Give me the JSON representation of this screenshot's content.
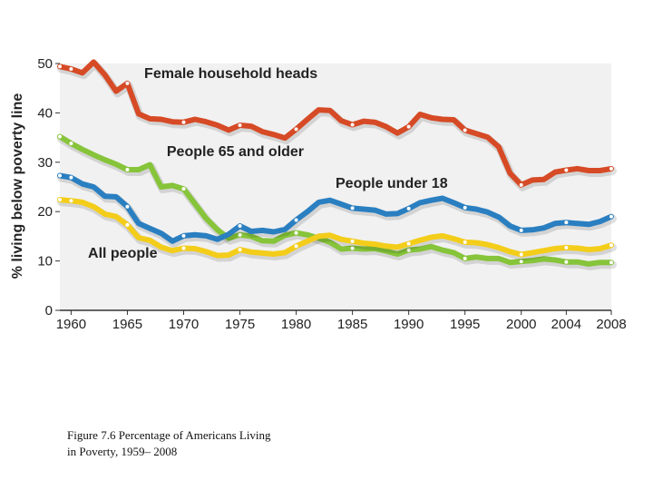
{
  "caption": {
    "line1": "Figure 7.6 Percentage of Americans Living",
    "line2": "in Poverty,  1959– 2008"
  },
  "chart_data": {
    "type": "line",
    "ylabel": "% living below poverty line",
    "xlabel": "",
    "ylim": [
      0,
      50
    ],
    "xlim": [
      1959,
      2008
    ],
    "yticks": [
      0,
      10,
      20,
      30,
      40,
      50
    ],
    "xticks": [
      {
        "value": 1960,
        "label": "1960"
      },
      {
        "value": 1965,
        "label": "1965"
      },
      {
        "value": 1970,
        "label": "1970"
      },
      {
        "value": 1975,
        "label": "1975"
      },
      {
        "value": 1980,
        "label": "1980"
      },
      {
        "value": 1985,
        "label": "1985"
      },
      {
        "value": 1990,
        "label": "1990"
      },
      {
        "value": 1995,
        "label": "1995"
      },
      {
        "value": 2000,
        "label": "2000"
      },
      {
        "value": 2004,
        "label": "2004"
      },
      {
        "value": 2008,
        "label": "2008"
      }
    ],
    "series": [
      {
        "name": "Female household heads",
        "color": "#d64a25",
        "x": [
          1959,
          1960,
          1961,
          1962,
          1963,
          1964,
          1965,
          1966,
          1967,
          1968,
          1969,
          1970,
          1971,
          1972,
          1973,
          1974,
          1975,
          1976,
          1977,
          1978,
          1979,
          1980,
          1981,
          1982,
          1983,
          1984,
          1985,
          1986,
          1987,
          1988,
          1989,
          1990,
          1991,
          1992,
          1993,
          1994,
          1995,
          1996,
          1997,
          1998,
          1999,
          2000,
          2001,
          2002,
          2003,
          2004,
          2005,
          2006,
          2007,
          2008
        ],
        "values": [
          49.4,
          48.9,
          48.1,
          50.3,
          47.7,
          44.4,
          46.0,
          39.8,
          38.8,
          38.7,
          38.2,
          38.1,
          38.7,
          38.2,
          37.5,
          36.5,
          37.5,
          37.3,
          36.2,
          35.6,
          34.9,
          36.7,
          38.7,
          40.6,
          40.5,
          38.4,
          37.6,
          38.3,
          38.1,
          37.2,
          35.9,
          37.2,
          39.7,
          39.0,
          38.7,
          38.6,
          36.5,
          35.8,
          35.1,
          33.1,
          27.8,
          25.4,
          26.4,
          26.5,
          28.0,
          28.4,
          28.7,
          28.3,
          28.3,
          28.7
        ],
        "label_anchor_year": 1966.5
      },
      {
        "name": "People 65 and older",
        "color": "#86c43a",
        "x": [
          1959,
          1960,
          1961,
          1962,
          1963,
          1964,
          1965,
          1966,
          1967,
          1968,
          1969,
          1970,
          1971,
          1972,
          1973,
          1974,
          1975,
          1976,
          1977,
          1978,
          1979,
          1980,
          1981,
          1982,
          1983,
          1984,
          1985,
          1986,
          1987,
          1988,
          1989,
          1990,
          1991,
          1992,
          1993,
          1994,
          1995,
          1996,
          1997,
          1998,
          1999,
          2000,
          2001,
          2002,
          2003,
          2004,
          2005,
          2006,
          2007,
          2008
        ],
        "values": [
          35.2,
          33.8,
          32.6,
          31.5,
          30.5,
          29.6,
          28.5,
          28.5,
          29.5,
          25.0,
          25.3,
          24.6,
          21.6,
          18.6,
          16.3,
          14.6,
          15.3,
          15.0,
          14.1,
          14.0,
          15.2,
          15.7,
          15.3,
          14.6,
          13.8,
          12.4,
          12.6,
          12.4,
          12.5,
          12.0,
          11.4,
          12.2,
          12.4,
          12.9,
          12.2,
          11.7,
          10.5,
          10.8,
          10.5,
          10.5,
          9.7,
          9.9,
          10.1,
          10.4,
          10.2,
          9.8,
          9.8,
          9.4,
          9.7,
          9.7
        ],
        "label_anchor_year": 1968.5
      },
      {
        "name": "People under 18",
        "color": "#2a7fc1",
        "x": [
          1959,
          1960,
          1961,
          1962,
          1963,
          1964,
          1965,
          1966,
          1967,
          1968,
          1969,
          1970,
          1971,
          1972,
          1973,
          1974,
          1975,
          1976,
          1977,
          1978,
          1979,
          1980,
          1981,
          1982,
          1983,
          1984,
          1985,
          1986,
          1987,
          1988,
          1989,
          1990,
          1991,
          1992,
          1993,
          1994,
          1995,
          1996,
          1997,
          1998,
          1999,
          2000,
          2001,
          2002,
          2003,
          2004,
          2005,
          2006,
          2007,
          2008
        ],
        "values": [
          27.3,
          26.9,
          25.6,
          25.0,
          23.1,
          23.0,
          21.0,
          17.6,
          16.6,
          15.6,
          14.0,
          15.1,
          15.3,
          15.1,
          14.4,
          15.4,
          17.1,
          16.0,
          16.2,
          15.9,
          16.4,
          18.3,
          20.0,
          21.9,
          22.3,
          21.5,
          20.7,
          20.5,
          20.3,
          19.5,
          19.6,
          20.6,
          21.8,
          22.3,
          22.7,
          21.8,
          20.8,
          20.5,
          19.9,
          18.9,
          17.1,
          16.2,
          16.3,
          16.7,
          17.6,
          17.8,
          17.6,
          17.4,
          18.0,
          19.0
        ],
        "label_anchor_year": 1983.5
      },
      {
        "name": "All people",
        "color": "#f3cd1a",
        "x": [
          1959,
          1960,
          1961,
          1962,
          1963,
          1964,
          1965,
          1966,
          1967,
          1968,
          1969,
          1970,
          1971,
          1972,
          1973,
          1974,
          1975,
          1976,
          1977,
          1978,
          1979,
          1980,
          1981,
          1982,
          1983,
          1984,
          1985,
          1986,
          1987,
          1988,
          1989,
          1990,
          1991,
          1992,
          1993,
          1994,
          1995,
          1996,
          1997,
          1998,
          1999,
          2000,
          2001,
          2002,
          2003,
          2004,
          2005,
          2006,
          2007,
          2008
        ],
        "values": [
          22.4,
          22.2,
          21.9,
          21.0,
          19.5,
          19.0,
          17.3,
          14.7,
          14.2,
          12.8,
          12.1,
          12.6,
          12.5,
          11.9,
          11.1,
          11.2,
          12.3,
          11.8,
          11.6,
          11.4,
          11.7,
          13.0,
          14.0,
          15.0,
          15.2,
          14.4,
          14.0,
          13.6,
          13.4,
          13.0,
          12.8,
          13.5,
          14.2,
          14.8,
          15.1,
          14.5,
          13.8,
          13.7,
          13.3,
          12.7,
          11.9,
          11.3,
          11.7,
          12.1,
          12.5,
          12.7,
          12.6,
          12.3,
          12.5,
          13.2
        ],
        "label_anchor_year": 1961.5
      }
    ]
  }
}
